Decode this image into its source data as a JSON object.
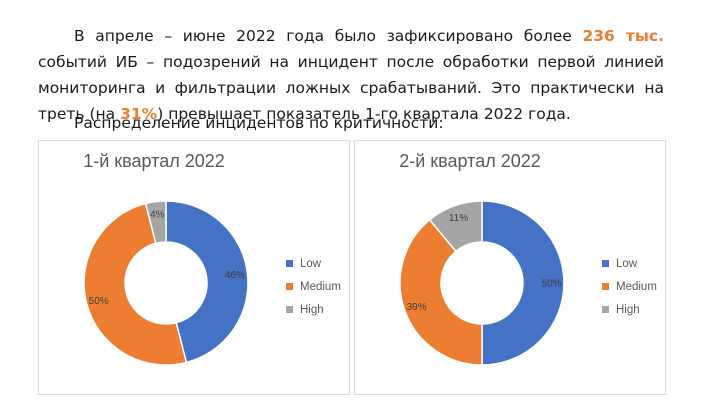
{
  "intro": {
    "part1": "В апреле – июне 2022 года было зафиксировано более ",
    "hl1": "236 тыс.",
    "part2": " событий ИБ – подозрений на инцидент после обработки первой линией мониторинга и фильтрации ложных срабатываний. Это практически на треть (на ",
    "hl2": "31%",
    "part3": ") превышает показатель 1-го квартала 2022 года."
  },
  "caption": "Распределение инцидентов по критичности:",
  "colors": {
    "Low": "#4472c4",
    "Medium": "#ed7d31",
    "High": "#a5a5a5"
  },
  "chart_data": [
    {
      "type": "pie",
      "title": "1-й квартал 2022",
      "legend_position": "right",
      "categories": [
        "Low",
        "Medium",
        "High"
      ],
      "values": [
        46,
        50,
        4
      ],
      "labels": [
        "46%",
        "50%",
        "4%"
      ]
    },
    {
      "type": "pie",
      "title": "2-й квартал 2022",
      "legend_position": "right",
      "categories": [
        "Low",
        "Medium",
        "High"
      ],
      "values": [
        50,
        39,
        11
      ],
      "labels": [
        "50%",
        "39%",
        "11%"
      ]
    }
  ]
}
